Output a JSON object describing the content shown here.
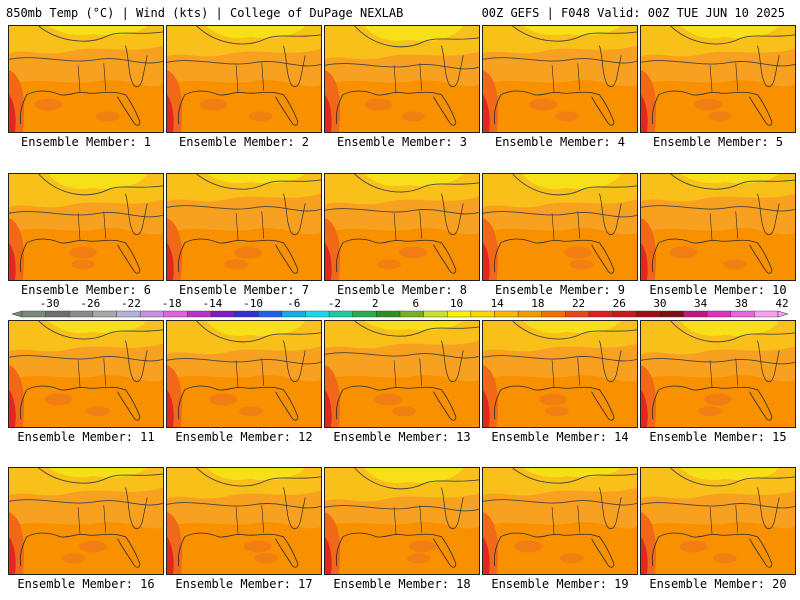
{
  "header": {
    "left": "850mb Temp (°C) | Wind (kts) | College of DuPage NEXLAB",
    "right": "00Z GEFS | F048 Valid: 00Z TUE JUN 10 2025"
  },
  "panels": [
    {
      "label": "Ensemble Member: 1"
    },
    {
      "label": "Ensemble Member: 2"
    },
    {
      "label": "Ensemble Member: 3"
    },
    {
      "label": "Ensemble Member: 4"
    },
    {
      "label": "Ensemble Member: 5"
    },
    {
      "label": "Ensemble Member: 6"
    },
    {
      "label": "Ensemble Member: 7"
    },
    {
      "label": "Ensemble Member: 8"
    },
    {
      "label": "Ensemble Member: 9"
    },
    {
      "label": "Ensemble Member: 10"
    },
    {
      "label": "Ensemble Member: 11"
    },
    {
      "label": "Ensemble Member: 12"
    },
    {
      "label": "Ensemble Member: 13"
    },
    {
      "label": "Ensemble Member: 14"
    },
    {
      "label": "Ensemble Member: 15"
    },
    {
      "label": "Ensemble Member: 16"
    },
    {
      "label": "Ensemble Member: 17"
    },
    {
      "label": "Ensemble Member: 18"
    },
    {
      "label": "Ensemble Member: 19"
    },
    {
      "label": "Ensemble Member: 20"
    }
  ],
  "colorbar": {
    "tick_labels": [
      "-30",
      "-26",
      "-22",
      "-18",
      "-14",
      "-10",
      "-6",
      "-2",
      "2",
      "6",
      "10",
      "14",
      "18",
      "22",
      "26",
      "30",
      "34",
      "38",
      "42"
    ],
    "colors": [
      "#7a8a7a",
      "#6e6e6e",
      "#8a8a8a",
      "#a8a8a8",
      "#b4b4d8",
      "#c890e0",
      "#e060e0",
      "#c030c8",
      "#7c1cc8",
      "#3030d0",
      "#2060e8",
      "#18a8f0",
      "#18d8f0",
      "#20c8a0",
      "#20b050",
      "#2c9020",
      "#78b020",
      "#c8e030",
      "#f8f000",
      "#f8d800",
      "#f8b800",
      "#f89800",
      "#f07000",
      "#e84818",
      "#e02020",
      "#c81818",
      "#a01010",
      "#801010",
      "#c01880",
      "#e030c0",
      "#f060e0",
      "#f8a0f0"
    ]
  }
}
